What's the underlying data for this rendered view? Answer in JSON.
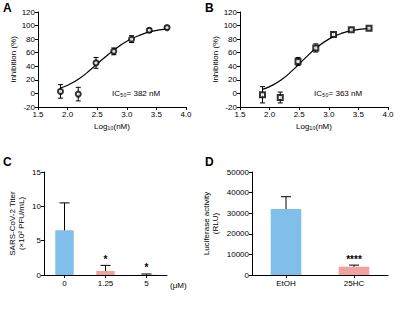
{
  "chart_data": [
    {
      "panel": "A",
      "type": "scatter",
      "xlabel": "Log₁₀(nM)",
      "ylabel": "Inhibition (%)",
      "xlim": [
        1.5,
        4
      ],
      "xticks": [
        1.5,
        {
          "value": 2,
          "label": "2.0"
        },
        2.5,
        {
          "value": 3,
          "label": "3.0"
        },
        3.5,
        {
          "value": 4,
          "label": "4.0"
        }
      ],
      "ylim": [
        -20,
        120
      ],
      "yticks": [
        -20,
        0,
        20,
        40,
        60,
        80,
        100,
        120
      ],
      "series": [
        {
          "type": "scatter",
          "marker": "circle",
          "color": "#000000",
          "x": [
            1.88,
            2.18,
            2.48,
            2.78,
            3.08,
            3.38,
            3.68
          ],
          "values": [
            3,
            -1,
            45,
            62,
            80,
            93,
            97
          ],
          "errors": [
            10,
            10,
            8,
            5,
            5,
            3,
            2
          ]
        },
        {
          "type": "line",
          "color": "#000000",
          "x": [
            1.88,
            2.0,
            2.2,
            2.4,
            2.6,
            2.8,
            3.0,
            3.2,
            3.4,
            3.7
          ],
          "values": [
            8,
            12,
            22,
            36,
            51,
            65,
            77,
            85,
            91,
            95
          ]
        }
      ],
      "annotations": [
        {
          "text": "IC₅₀= 382 nM"
        }
      ]
    },
    {
      "panel": "B",
      "type": "scatter",
      "xlabel": "Log₁₀(nM)",
      "ylabel": "Inhibition (%)",
      "xlim": [
        1.5,
        4
      ],
      "xticks": [
        1.5,
        {
          "value": 2,
          "label": "2.0"
        },
        2.5,
        {
          "value": 3,
          "label": "3.0"
        },
        3.5,
        {
          "value": 4,
          "label": "4.0"
        }
      ],
      "ylim": [
        -20,
        120
      ],
      "yticks": [
        -20,
        0,
        20,
        40,
        60,
        80,
        100,
        120
      ],
      "series": [
        {
          "type": "scatter",
          "marker": "square",
          "color": "#000000",
          "x": [
            1.88,
            2.18,
            2.48,
            2.78,
            3.08,
            3.38,
            3.68
          ],
          "values": [
            -2,
            -6,
            47,
            67,
            87,
            94,
            96
          ],
          "errors": [
            12,
            8,
            6,
            6,
            3,
            2,
            2
          ]
        },
        {
          "type": "line",
          "color": "#000000",
          "x": [
            1.88,
            2.0,
            2.2,
            2.4,
            2.6,
            2.8,
            3.0,
            3.2,
            3.4,
            3.7
          ],
          "values": [
            6,
            10,
            20,
            35,
            52,
            68,
            80,
            88,
            93,
            96
          ]
        }
      ],
      "annotations": [
        {
          "text": "IC₅₀= 363 nM"
        }
      ]
    },
    {
      "panel": "C",
      "type": "bar",
      "xlabel": "(μM)",
      "ylabel": "SARS-CoV-2 Titer\n(×10² PFU/mL)",
      "categories": [
        "0",
        "1.25",
        "5"
      ],
      "values": [
        6.5,
        0.6,
        0.05
      ],
      "errors": [
        4,
        0.8,
        0.1
      ],
      "colors": [
        "#7fbfea",
        "#f2a0a0",
        "#f2a0a0"
      ],
      "ylim": [
        0,
        15
      ],
      "yticks": [
        0,
        5,
        10,
        15
      ],
      "annotations": [
        {
          "text": "*",
          "category": "1.25"
        },
        {
          "text": "*",
          "category": "5"
        }
      ]
    },
    {
      "panel": "D",
      "type": "bar",
      "ylabel": "Luciferase activity\n(RLU)",
      "categories": [
        "EtOH",
        "25HC"
      ],
      "values": [
        32000,
        4000
      ],
      "errors": [
        6000,
        800
      ],
      "colors": [
        "#7fbfea",
        "#f2a0a0"
      ],
      "ylim": [
        0,
        50000
      ],
      "yticks": [
        0,
        10000,
        20000,
        30000,
        40000,
        50000
      ],
      "annotations": [
        {
          "text": "****",
          "category": "25HC"
        }
      ]
    }
  ]
}
